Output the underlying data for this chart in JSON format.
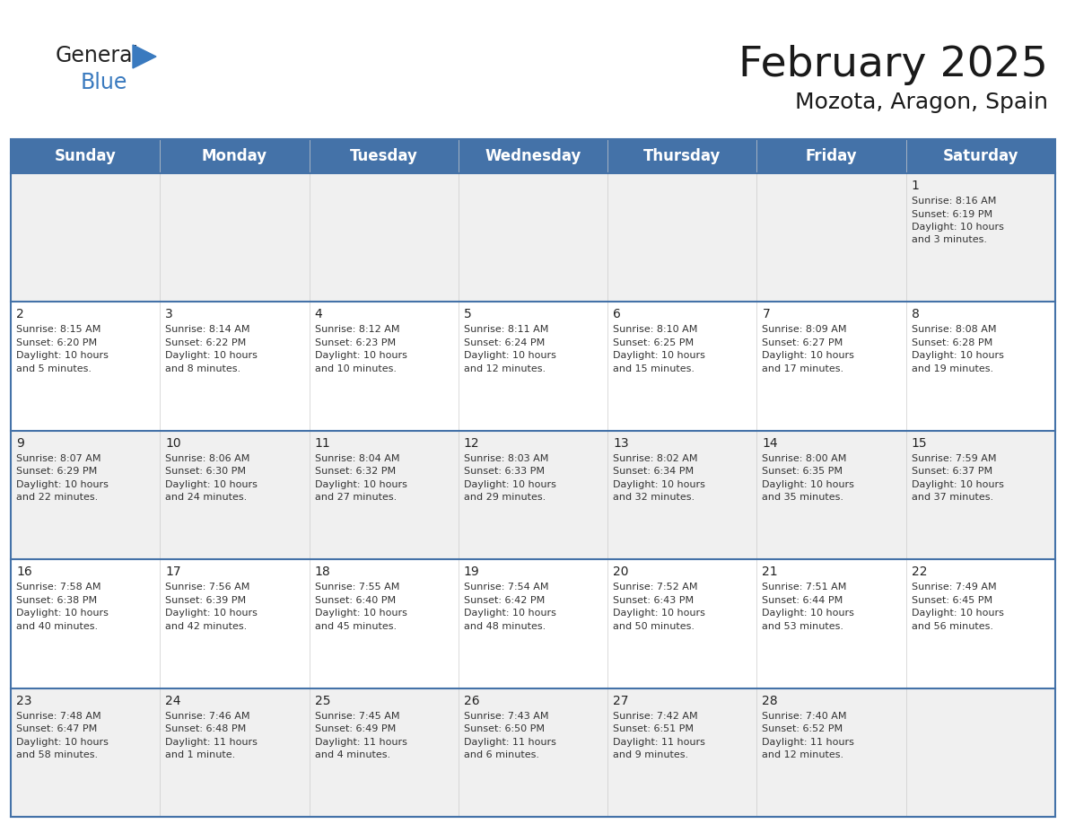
{
  "title": "February 2025",
  "subtitle": "Mozota, Aragon, Spain",
  "header_color": "#4472a8",
  "header_text_color": "#ffffff",
  "cell_bg_row0": "#f0f0f0",
  "cell_bg_row1": "#ffffff",
  "cell_bg_row2": "#f0f0f0",
  "cell_bg_row3": "#ffffff",
  "cell_bg_row4": "#f0f0f0",
  "border_color": "#4472a8",
  "grid_color": "#4472a8",
  "day_names": [
    "Sunday",
    "Monday",
    "Tuesday",
    "Wednesday",
    "Thursday",
    "Friday",
    "Saturday"
  ],
  "title_fontsize": 34,
  "subtitle_fontsize": 18,
  "header_fontsize": 12,
  "day_num_fontsize": 10,
  "cell_fontsize": 8,
  "text_color": "#333333",
  "day_num_color": "#222222",
  "logo_general_color": "#222222",
  "logo_blue_color": "#3a7abf",
  "weeks": [
    [
      null,
      null,
      null,
      null,
      null,
      null,
      1
    ],
    [
      2,
      3,
      4,
      5,
      6,
      7,
      8
    ],
    [
      9,
      10,
      11,
      12,
      13,
      14,
      15
    ],
    [
      16,
      17,
      18,
      19,
      20,
      21,
      22
    ],
    [
      23,
      24,
      25,
      26,
      27,
      28,
      null
    ]
  ],
  "cell_data": {
    "1": {
      "sunrise": "8:16 AM",
      "sunset": "6:19 PM",
      "daylight_line1": "Daylight: 10 hours",
      "daylight_line2": "and 3 minutes."
    },
    "2": {
      "sunrise": "8:15 AM",
      "sunset": "6:20 PM",
      "daylight_line1": "Daylight: 10 hours",
      "daylight_line2": "and 5 minutes."
    },
    "3": {
      "sunrise": "8:14 AM",
      "sunset": "6:22 PM",
      "daylight_line1": "Daylight: 10 hours",
      "daylight_line2": "and 8 minutes."
    },
    "4": {
      "sunrise": "8:12 AM",
      "sunset": "6:23 PM",
      "daylight_line1": "Daylight: 10 hours",
      "daylight_line2": "and 10 minutes."
    },
    "5": {
      "sunrise": "8:11 AM",
      "sunset": "6:24 PM",
      "daylight_line1": "Daylight: 10 hours",
      "daylight_line2": "and 12 minutes."
    },
    "6": {
      "sunrise": "8:10 AM",
      "sunset": "6:25 PM",
      "daylight_line1": "Daylight: 10 hours",
      "daylight_line2": "and 15 minutes."
    },
    "7": {
      "sunrise": "8:09 AM",
      "sunset": "6:27 PM",
      "daylight_line1": "Daylight: 10 hours",
      "daylight_line2": "and 17 minutes."
    },
    "8": {
      "sunrise": "8:08 AM",
      "sunset": "6:28 PM",
      "daylight_line1": "Daylight: 10 hours",
      "daylight_line2": "and 19 minutes."
    },
    "9": {
      "sunrise": "8:07 AM",
      "sunset": "6:29 PM",
      "daylight_line1": "Daylight: 10 hours",
      "daylight_line2": "and 22 minutes."
    },
    "10": {
      "sunrise": "8:06 AM",
      "sunset": "6:30 PM",
      "daylight_line1": "Daylight: 10 hours",
      "daylight_line2": "and 24 minutes."
    },
    "11": {
      "sunrise": "8:04 AM",
      "sunset": "6:32 PM",
      "daylight_line1": "Daylight: 10 hours",
      "daylight_line2": "and 27 minutes."
    },
    "12": {
      "sunrise": "8:03 AM",
      "sunset": "6:33 PM",
      "daylight_line1": "Daylight: 10 hours",
      "daylight_line2": "and 29 minutes."
    },
    "13": {
      "sunrise": "8:02 AM",
      "sunset": "6:34 PM",
      "daylight_line1": "Daylight: 10 hours",
      "daylight_line2": "and 32 minutes."
    },
    "14": {
      "sunrise": "8:00 AM",
      "sunset": "6:35 PM",
      "daylight_line1": "Daylight: 10 hours",
      "daylight_line2": "and 35 minutes."
    },
    "15": {
      "sunrise": "7:59 AM",
      "sunset": "6:37 PM",
      "daylight_line1": "Daylight: 10 hours",
      "daylight_line2": "and 37 minutes."
    },
    "16": {
      "sunrise": "7:58 AM",
      "sunset": "6:38 PM",
      "daylight_line1": "Daylight: 10 hours",
      "daylight_line2": "and 40 minutes."
    },
    "17": {
      "sunrise": "7:56 AM",
      "sunset": "6:39 PM",
      "daylight_line1": "Daylight: 10 hours",
      "daylight_line2": "and 42 minutes."
    },
    "18": {
      "sunrise": "7:55 AM",
      "sunset": "6:40 PM",
      "daylight_line1": "Daylight: 10 hours",
      "daylight_line2": "and 45 minutes."
    },
    "19": {
      "sunrise": "7:54 AM",
      "sunset": "6:42 PM",
      "daylight_line1": "Daylight: 10 hours",
      "daylight_line2": "and 48 minutes."
    },
    "20": {
      "sunrise": "7:52 AM",
      "sunset": "6:43 PM",
      "daylight_line1": "Daylight: 10 hours",
      "daylight_line2": "and 50 minutes."
    },
    "21": {
      "sunrise": "7:51 AM",
      "sunset": "6:44 PM",
      "daylight_line1": "Daylight: 10 hours",
      "daylight_line2": "and 53 minutes."
    },
    "22": {
      "sunrise": "7:49 AM",
      "sunset": "6:45 PM",
      "daylight_line1": "Daylight: 10 hours",
      "daylight_line2": "and 56 minutes."
    },
    "23": {
      "sunrise": "7:48 AM",
      "sunset": "6:47 PM",
      "daylight_line1": "Daylight: 10 hours",
      "daylight_line2": "and 58 minutes."
    },
    "24": {
      "sunrise": "7:46 AM",
      "sunset": "6:48 PM",
      "daylight_line1": "Daylight: 11 hours",
      "daylight_line2": "and 1 minute."
    },
    "25": {
      "sunrise": "7:45 AM",
      "sunset": "6:49 PM",
      "daylight_line1": "Daylight: 11 hours",
      "daylight_line2": "and 4 minutes."
    },
    "26": {
      "sunrise": "7:43 AM",
      "sunset": "6:50 PM",
      "daylight_line1": "Daylight: 11 hours",
      "daylight_line2": "and 6 minutes."
    },
    "27": {
      "sunrise": "7:42 AM",
      "sunset": "6:51 PM",
      "daylight_line1": "Daylight: 11 hours",
      "daylight_line2": "and 9 minutes."
    },
    "28": {
      "sunrise": "7:40 AM",
      "sunset": "6:52 PM",
      "daylight_line1": "Daylight: 11 hours",
      "daylight_line2": "and 12 minutes."
    }
  }
}
